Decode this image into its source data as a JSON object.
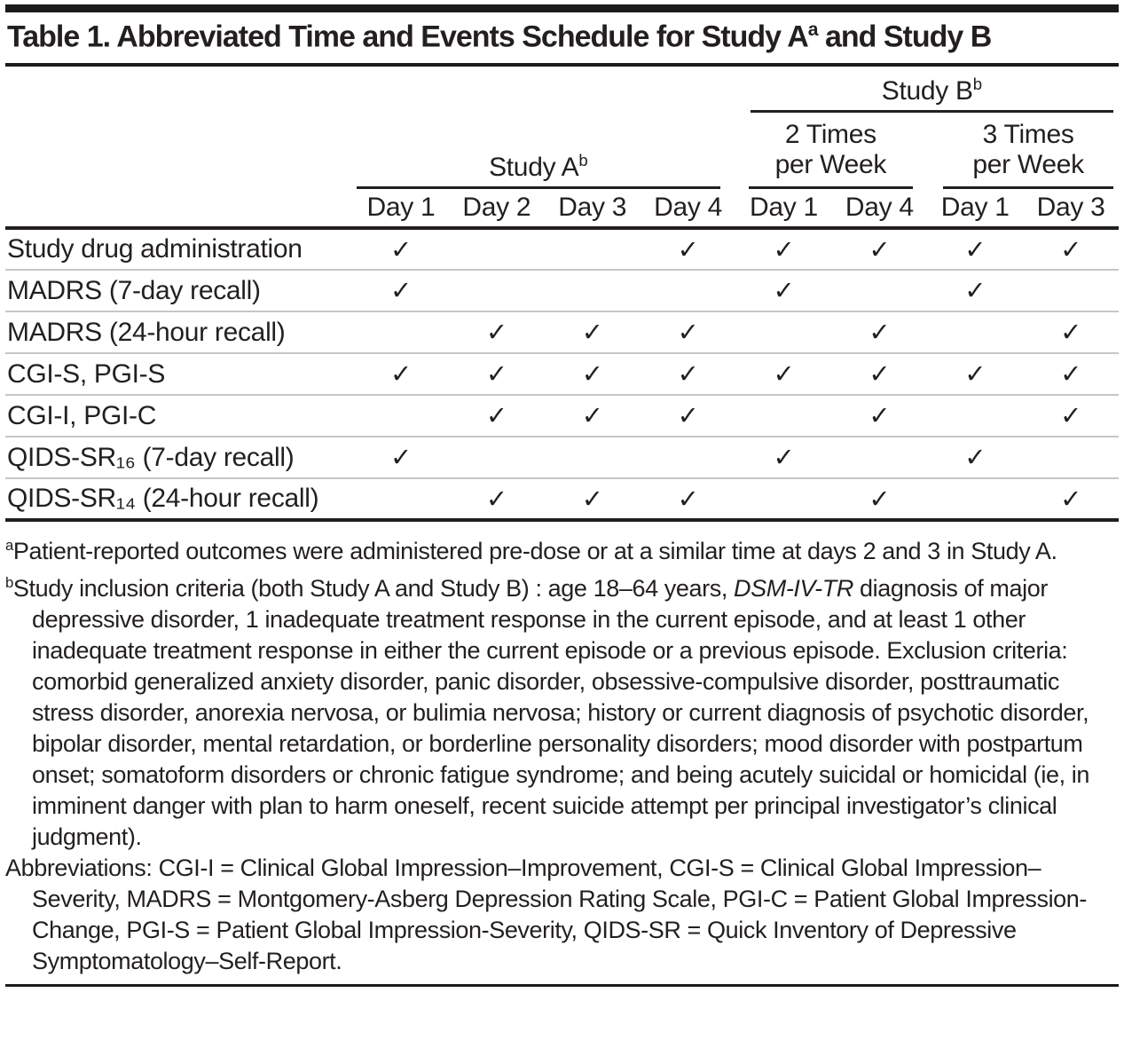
{
  "title": {
    "prefix": "Table 1. Abbreviated Time and Events Schedule for Study A",
    "sup": "a",
    "suffix": " and Study B"
  },
  "colors": {
    "ink": "#231f20",
    "heavy_rule": "#1c1a1b",
    "row_separator": "#c6c6c6",
    "background": "#ffffff"
  },
  "table": {
    "header": {
      "study_a": {
        "label": "Study A",
        "sup": "b"
      },
      "study_b": {
        "label": "Study B",
        "sup": "b"
      },
      "subgroups": [
        {
          "line1": "2 Times",
          "line2": "per Week"
        },
        {
          "line1": "3 Times",
          "line2": "per Week"
        }
      ],
      "days": [
        "Day 1",
        "Day 2",
        "Day 3",
        "Day 4",
        "Day 1",
        "Day 4",
        "Day 1",
        "Day 3"
      ]
    },
    "rows": [
      {
        "label": "Study drug administration",
        "marks": [
          "✓",
          "",
          "",
          "✓",
          "✓",
          "✓",
          "✓",
          "✓"
        ]
      },
      {
        "label": "MADRS (7-day recall)",
        "marks": [
          "✓",
          "",
          "",
          "",
          "✓",
          "",
          "✓",
          ""
        ]
      },
      {
        "label": "MADRS (24-hour recall)",
        "marks": [
          "",
          "✓",
          "✓",
          "✓",
          "",
          "✓",
          "",
          "✓"
        ]
      },
      {
        "label": "CGI-S, PGI-S",
        "marks": [
          "✓",
          "✓",
          "✓",
          "✓",
          "✓",
          "✓",
          "✓",
          "✓"
        ]
      },
      {
        "label": "CGI-I, PGI-C",
        "marks": [
          "",
          "✓",
          "✓",
          "✓",
          "",
          "✓",
          "",
          "✓"
        ]
      },
      {
        "label": "QIDS-SR₁₆ (7-day recall)",
        "marks": [
          "✓",
          "",
          "",
          "",
          "✓",
          "",
          "✓",
          ""
        ]
      },
      {
        "label": "QIDS-SR₁₄ (24-hour recall)",
        "marks": [
          "",
          "✓",
          "✓",
          "✓",
          "",
          "✓",
          "",
          "✓"
        ]
      }
    ]
  },
  "footnotes": {
    "a": {
      "marker": "a",
      "text": "Patient-reported outcomes were administered pre-dose or at a similar time at days 2 and 3 in Study A."
    },
    "b": {
      "marker": "b",
      "before_italic": "Study inclusion criteria (both Study A and Study B) : age 18–64 years, ",
      "italic": "DSM-IV-TR",
      "after_italic": " diagnosis of major depressive disorder, 1 inadequate treatment response in the current episode, and at least 1 other inadequate treatment response in either the current episode or a previous episode. Exclusion criteria: comorbid generalized anxiety disorder, panic disorder, obsessive-compulsive disorder, posttraumatic stress disorder, anorexia nervosa, or bulimia nervosa; history or current diagnosis of psychotic disorder, bipolar disorder, mental retardation, or borderline personality disorders; mood disorder with postpartum onset; somatoform disorders or chronic fatigue syndrome; and being acutely suicidal or homicidal (ie, in imminent danger with plan to harm oneself, recent suicide attempt per principal investigator’s clinical judgment)."
    },
    "abbreviations": "Abbreviations: CGI-I = Clinical Global Impression–Improvement, CGI-S = Clinical Global Impression–Severity, MADRS = Montgomery-Asberg Depression Rating Scale, PGI-C = Patient Global Impression-Change, PGI-S = Patient Global Impression-Severity, QIDS-SR = Quick Inventory of Depressive Symptomatology–Self-Report."
  }
}
